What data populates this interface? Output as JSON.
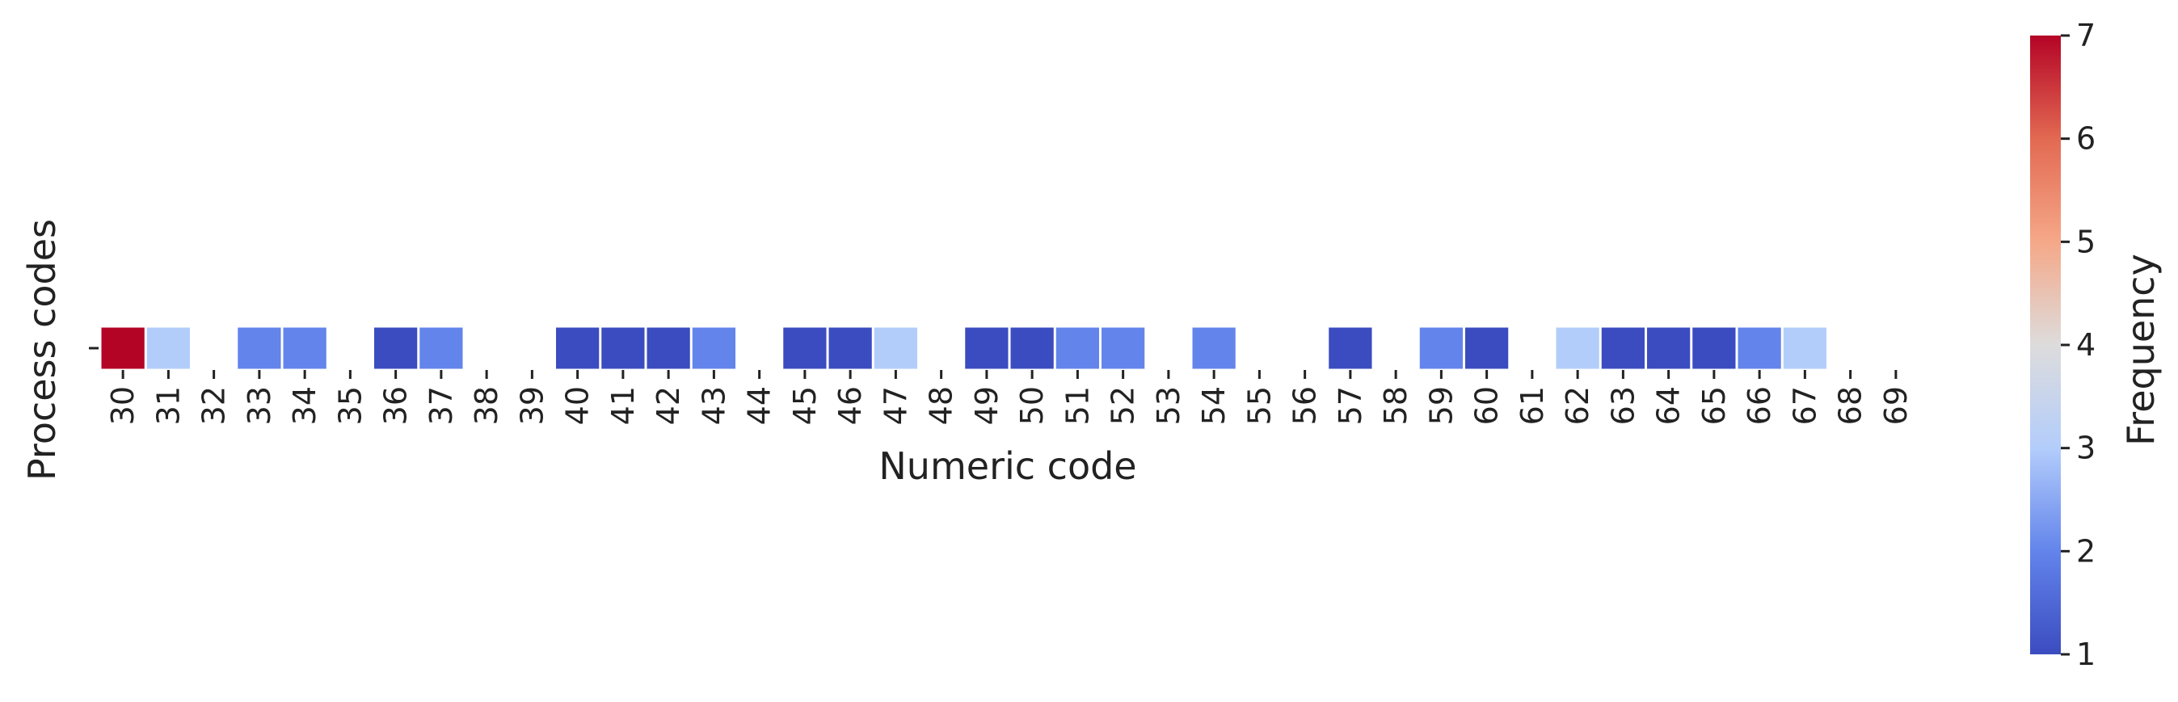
{
  "chart_data": {
    "type": "heatmap",
    "title": "",
    "xlabel": "Numeric code",
    "ylabel": "Process codes",
    "x": [
      30,
      31,
      32,
      33,
      34,
      35,
      36,
      37,
      38,
      39,
      40,
      41,
      42,
      43,
      44,
      45,
      46,
      47,
      48,
      49,
      50,
      51,
      52,
      53,
      54,
      55,
      56,
      57,
      58,
      59,
      60,
      61,
      62,
      63,
      64,
      65,
      66,
      67,
      68,
      69
    ],
    "x_tick_labels": [
      "30",
      "31",
      "32",
      "33",
      "34",
      "35",
      "36",
      "37",
      "38",
      "39",
      "40",
      "41",
      "42",
      "43",
      "44",
      "45",
      "46",
      "47",
      "48",
      "49",
      "50",
      "51",
      "52",
      "53",
      "54",
      "55",
      "56",
      "57",
      "58",
      "59",
      "60",
      "61",
      "62",
      "63",
      "64",
      "65",
      "66",
      "67",
      "68",
      "69"
    ],
    "y_tick_labels": [
      ""
    ],
    "values": [
      7,
      3,
      null,
      2,
      2,
      null,
      1,
      2,
      null,
      null,
      1,
      1,
      1,
      2,
      null,
      1,
      1,
      3,
      null,
      1,
      1,
      2,
      2,
      null,
      2,
      null,
      null,
      1,
      null,
      2,
      1,
      null,
      3,
      1,
      1,
      1,
      2,
      3,
      null,
      null
    ],
    "colormap": "coolwarm",
    "vmin": 1,
    "vmax": 7,
    "colorbar": {
      "label": "Frequency",
      "ticks": [
        1,
        2,
        3,
        4,
        5,
        6,
        7
      ],
      "tick_labels": [
        "1",
        "2",
        "3",
        "4",
        "5",
        "6",
        "7"
      ],
      "placement": "right"
    },
    "grid": false,
    "legend": "none"
  }
}
